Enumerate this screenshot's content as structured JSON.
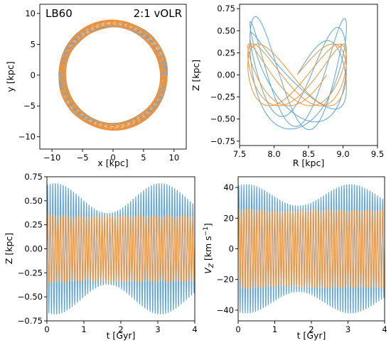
{
  "colors": {
    "blue": "#5fa2d6",
    "orange": "#f0923a"
  },
  "chart_data": [
    {
      "type": "line",
      "panel": "xy orbit",
      "xlabel": "x [kpc]",
      "ylabel": "y [kpc]",
      "xlim": [
        -12,
        12
      ],
      "ylim": [
        -12,
        11.5
      ],
      "xticks": [
        -10,
        -5,
        0,
        5,
        10
      ],
      "yticks": [
        -10,
        -5,
        0,
        5,
        10
      ],
      "annotations": [
        "LB60",
        "2:1 vOLR"
      ],
      "series": [
        {
          "color": "blue",
          "radius_range_kpc": [
            7.7,
            9.0
          ]
        },
        {
          "color": "orange",
          "radius_range_kpc": [
            7.7,
            9.0
          ]
        }
      ]
    },
    {
      "type": "line",
      "panel": "R-Z meridional orbit",
      "xlabel": "R [kpc]",
      "ylabel": "Z [kpc]",
      "xlim": [
        7.5,
        9.5
      ],
      "ylim": [
        -0.8,
        0.8
      ],
      "xticks": [
        7.5,
        8.0,
        8.5,
        9.0,
        9.5
      ],
      "yticks": [
        -0.75,
        -0.5,
        -0.25,
        0.0,
        0.25,
        0.5,
        0.75
      ],
      "series": [
        {
          "color": "blue",
          "R_range": [
            7.65,
            9.05
          ],
          "Z_range": [
            -0.65,
            0.69
          ]
        },
        {
          "color": "orange",
          "R_range": [
            7.62,
            9.05
          ],
          "Z_range": [
            -0.35,
            0.35
          ]
        }
      ]
    },
    {
      "type": "line",
      "panel": "Z vs time",
      "xlabel": "t [Gyr]",
      "ylabel": "Z [kpc]",
      "xlim": [
        0,
        4
      ],
      "ylim": [
        -0.75,
        0.75
      ],
      "xticks": [
        0,
        1,
        2,
        3,
        4
      ],
      "yticks": [
        -0.75,
        -0.5,
        -0.25,
        0.0,
        0.25,
        0.5,
        0.75
      ],
      "series": [
        {
          "color": "blue",
          "oscillations": 57,
          "amplitude_range": [
            0.37,
            0.68
          ]
        },
        {
          "color": "orange",
          "oscillations": 57,
          "amplitude_range": [
            0.33,
            0.35
          ]
        }
      ]
    },
    {
      "type": "line",
      "panel": "Vz vs time",
      "xlabel": "t [Gyr]",
      "ylabel": "V_Z [km s^-1]",
      "xlim": [
        0,
        4
      ],
      "ylim": [
        -47,
        47
      ],
      "xticks": [
        0,
        1,
        2,
        3,
        4
      ],
      "yticks": [
        -40,
        -20,
        0,
        20,
        40
      ],
      "series": [
        {
          "color": "blue",
          "oscillations": 57,
          "amplitude_range": [
            28,
            42
          ]
        },
        {
          "color": "orange",
          "oscillations": 57,
          "amplitude_range": [
            24,
            26
          ]
        }
      ]
    }
  ]
}
